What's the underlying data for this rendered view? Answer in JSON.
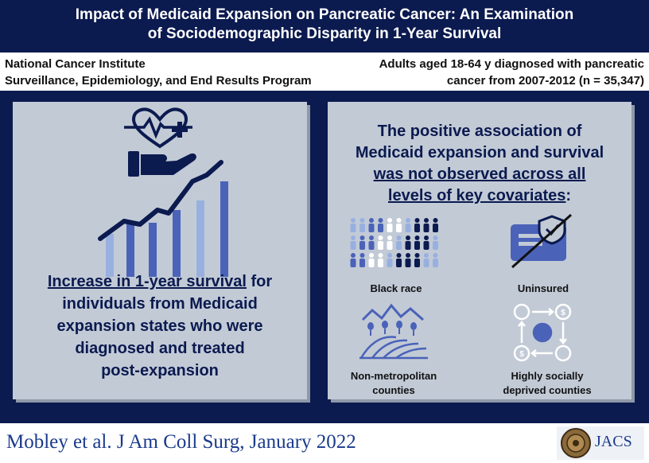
{
  "title": {
    "line1": "Impact of Medicaid Expansion on Pancreatic Cancer: An Examination",
    "line2": "of Sociodemographic Disparity in 1-Year Survival"
  },
  "source": {
    "line1": "National Cancer Institute",
    "line2": "Surveillance, Epidemiology, and End Results Program"
  },
  "population": {
    "line1": "Adults aged 18-64 y diagnosed with pancreatic",
    "line2": "cancer from 2007-2012 (n = 35,347)"
  },
  "left_panel": {
    "highlight": "Increase in 1-year survival",
    "text_after_highlight": " for",
    "line2": "individuals from Medicaid",
    "line3": "expansion states who were",
    "line4": "diagnosed and treated",
    "line5": "post-expansion"
  },
  "right_panel": {
    "head_line1": "The positive association of",
    "head_line2": "Medicaid expansion and survival",
    "head_line3": "was not observed across all",
    "head_line4": "levels of key covariates",
    "head_colon": ":",
    "covariates": [
      {
        "label": "Black race",
        "icon": "people-grid-icon"
      },
      {
        "label": "Uninsured",
        "icon": "insurance-card-crossed-icon"
      },
      {
        "label_line1": "Non-metropolitan",
        "label_line2": "counties",
        "icon": "rural-landscape-icon"
      },
      {
        "label_line1": "Highly socially",
        "label_line2": "deprived counties",
        "icon": "money-cycle-icon"
      }
    ]
  },
  "footer": {
    "citation": "Mobley et al. J Am Coll Surg, January 2022",
    "journal": "JACS"
  },
  "colors": {
    "navy": "#0b1a4f",
    "panel": "#c2cad6",
    "blue_dark": "#4a62b8",
    "blue_light": "#98b0e0"
  }
}
